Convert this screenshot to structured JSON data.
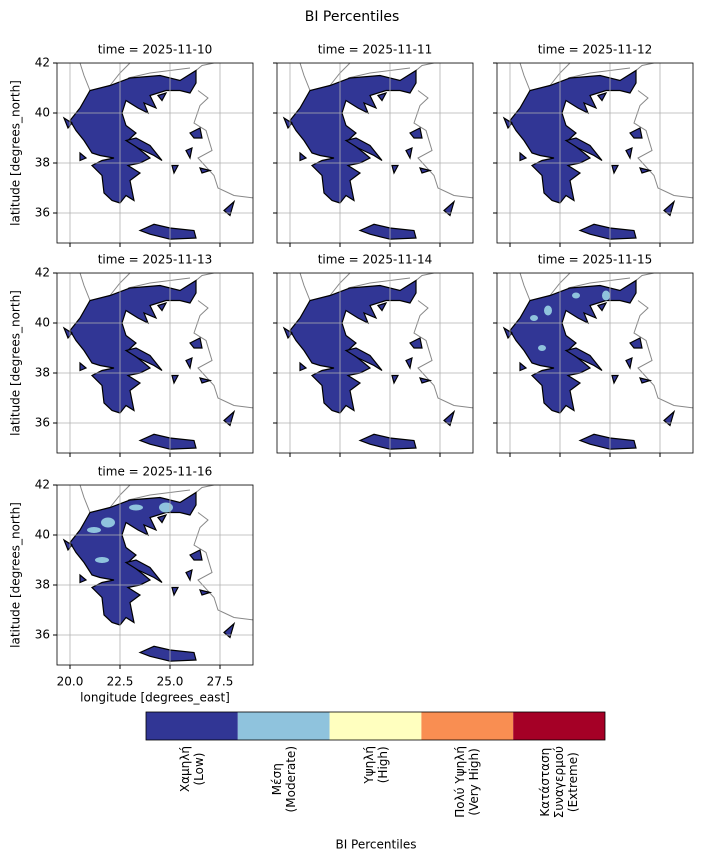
{
  "chart_data": {
    "type": "map-facets",
    "title": "BI Percentiles",
    "panels": [
      {
        "title": "time = 2025-11-10"
      },
      {
        "title": "time = 2025-11-11"
      },
      {
        "title": "time = 2025-11-12"
      },
      {
        "title": "time = 2025-11-13"
      },
      {
        "title": "time = 2025-11-14"
      },
      {
        "title": "time = 2025-11-15"
      },
      {
        "title": "time = 2025-11-16"
      }
    ],
    "x_label": "longitude [degrees_east]",
    "y_label": "latitude [degrees_north]",
    "xlim": [
      19.35,
      29.15
    ],
    "ylim": [
      34.8,
      42
    ],
    "xticks": [
      {
        "value": 20,
        "label": "20.0"
      },
      {
        "value": 22.5,
        "label": "22.5"
      },
      {
        "value": 25,
        "label": "25.0"
      },
      {
        "value": 27.5,
        "label": "27.5"
      }
    ],
    "yticks": [
      36,
      38,
      40,
      42
    ],
    "grid": true,
    "colorbar": {
      "label": "BI Percentiles",
      "categories": [
        "Χαμηλή\n(Low)",
        "Μέση\n(Moderate)",
        "Υψηλή\n(High)",
        "Πολύ Υψηλή\n(Very High)",
        "Κατάσταση\nΣυναγερμού\n(Extreme)"
      ],
      "colors": [
        "#313695",
        "#8fc3dd",
        "#ffffbf",
        "#f98e52",
        "#a50026"
      ]
    }
  }
}
